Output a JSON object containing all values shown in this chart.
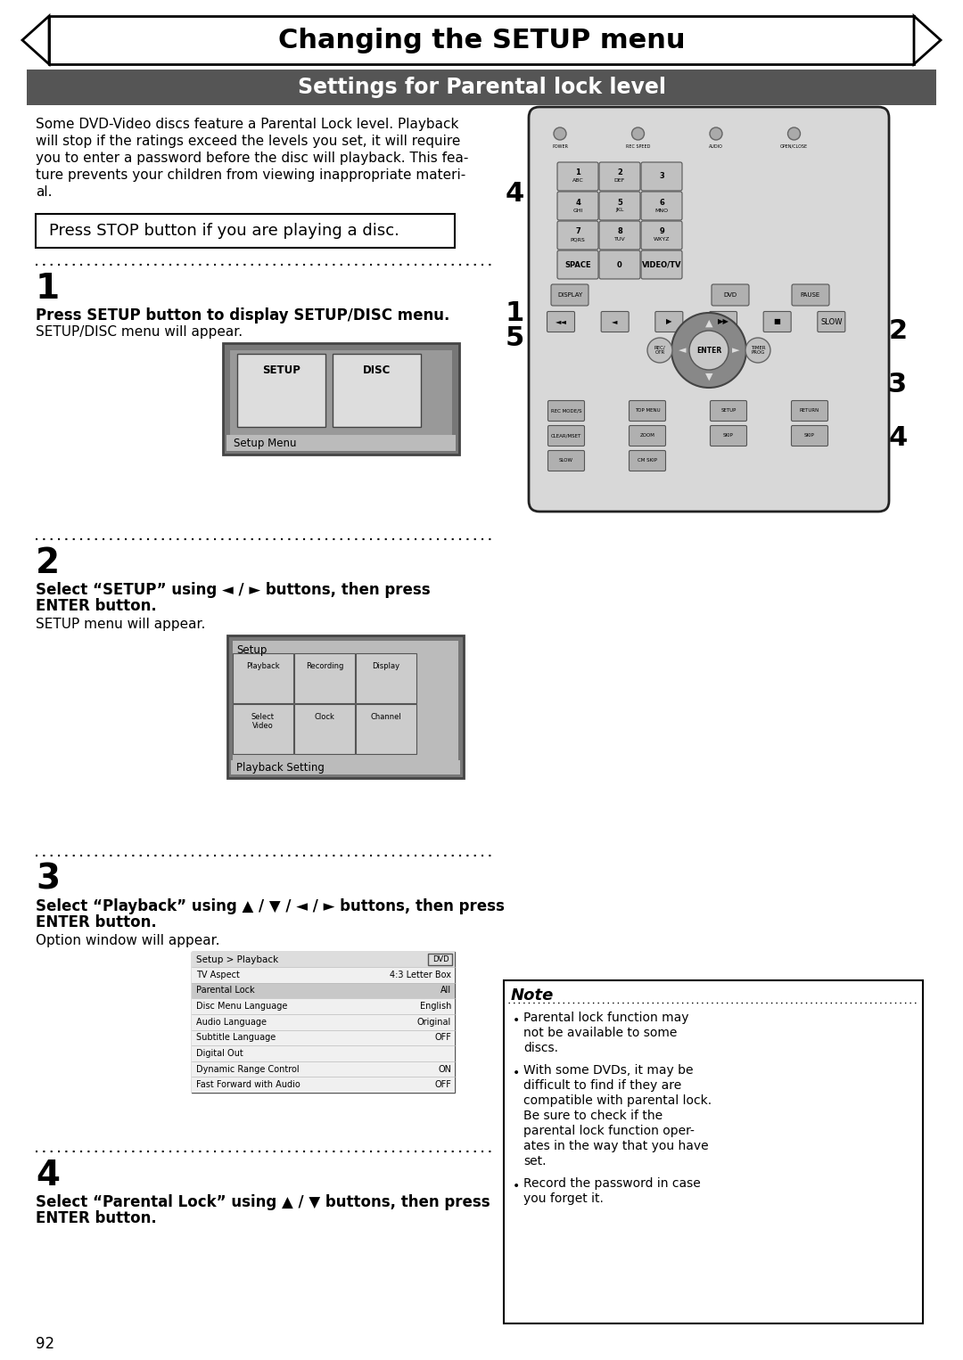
{
  "title": "Changing the SETUP menu",
  "subtitle": "Settings for Parental lock level",
  "bg_color": "#ffffff",
  "subtitle_bg": "#555555",
  "page_number": "92",
  "intro_text": [
    "Some DVD-Video discs feature a Parental Lock level. Playback",
    "will stop if the ratings exceed the levels you set, it will require",
    "you to enter a password before the disc will playback. This fea-",
    "ture prevents your children from viewing inappropriate materi-",
    "al."
  ],
  "stop_box_text": "Press STOP button if you are playing a disc.",
  "step1_num": "1",
  "step1_bold": "Press SETUP button to display SETUP/DISC menu.",
  "step1_normal": "SETUP/DISC menu will appear.",
  "step1_caption": "Setup Menu",
  "step2_num": "2",
  "step2_bold1": "Select “SETUP” using ◄ / ► buttons, then press",
  "step2_bold2": "ENTER button.",
  "step2_normal": "SETUP menu will appear.",
  "step2_caption": "Playback Setting",
  "step3_num": "3",
  "step3_bold1": "Select “Playback” using ▲ / ▼ / ◄ / ► buttons, then press",
  "step3_bold2": "ENTER button.",
  "step3_normal": "Option window will appear.",
  "step4_num": "4",
  "step4_bold1": "Select “Parental Lock” using ▲ / ▼ buttons, then press",
  "step4_bold2": "ENTER button.",
  "note_title": "Note",
  "note_bullets": [
    "Parental lock function may\nnot be available to some\ndiscs.",
    "With some DVDs, it may be\ndifficult to find if they are\ncompatible with parental lock.\nBe sure to check if the\nparental lock function oper-\nates in the way that you have\nset.",
    "Record the password in case\nyou forget it."
  ],
  "setup_menu_rows": [
    [
      "TV Aspect",
      "4:3 Letter Box"
    ],
    [
      "Parental Lock",
      "All"
    ],
    [
      "Disc Menu Language",
      "English"
    ],
    [
      "Audio Language",
      "Original"
    ],
    [
      "Subtitle Language",
      "OFF"
    ],
    [
      "Digital Out",
      ""
    ],
    [
      "Dynamic Range Control",
      "ON"
    ],
    [
      "Fast Forward with Audio",
      "OFF"
    ]
  ],
  "title_font_size": 22,
  "subtitle_font_size": 17,
  "body_font_size": 11,
  "step_num_font_size": 28,
  "step_bold_font_size": 12,
  "note_font_size": 10
}
